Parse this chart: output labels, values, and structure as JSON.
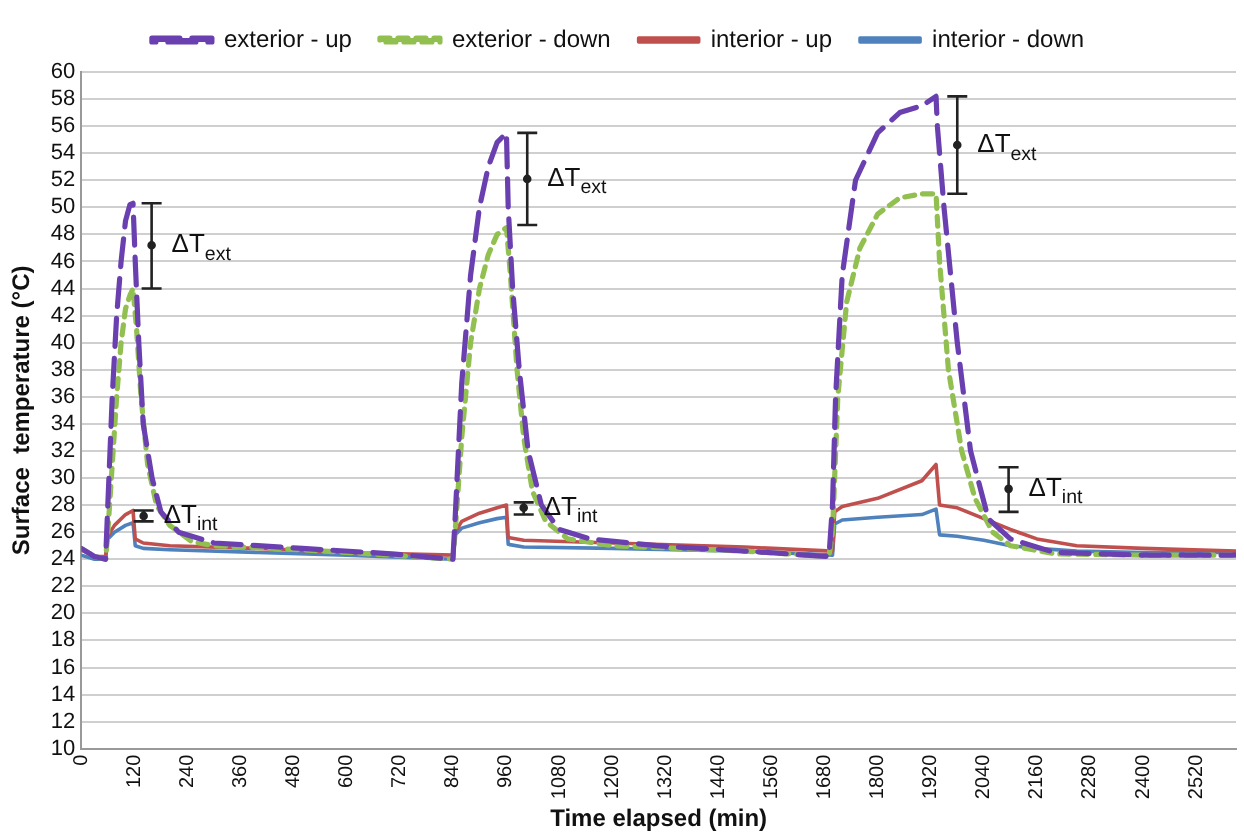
{
  "chart_data": {
    "type": "line",
    "xlabel": "Time elapsed (min)",
    "ylabel": "Surface  temperature (°C)",
    "xlim": [
      0,
      2610
    ],
    "xticks": [
      0,
      120,
      240,
      360,
      480,
      600,
      720,
      840,
      960,
      1080,
      1200,
      1320,
      1440,
      1560,
      1680,
      1800,
      1920,
      2040,
      2160,
      2280,
      2400,
      2520
    ],
    "ylim": [
      10,
      60
    ],
    "yticks": [
      10,
      12,
      14,
      16,
      18,
      20,
      22,
      24,
      26,
      28,
      30,
      32,
      34,
      36,
      38,
      40,
      42,
      44,
      46,
      48,
      50,
      52,
      54,
      56,
      58,
      60
    ],
    "grid": "y",
    "legend": "top",
    "marker": "none",
    "series": [
      {
        "name": "exterior - up",
        "color": "#6a3fb0",
        "line_style": "dashed",
        "x": [
          0,
          30,
          55,
          60,
          70,
          80,
          90,
          100,
          110,
          117,
          122,
          130,
          140,
          160,
          180,
          220,
          300,
          500,
          700,
          840,
          845,
          860,
          880,
          900,
          920,
          940,
          961,
          965,
          975,
          990,
          1010,
          1040,
          1080,
          1150,
          1300,
          1500,
          1690,
          1698,
          1705,
          1720,
          1750,
          1800,
          1850,
          1900,
          1932,
          1935,
          1950,
          1980,
          2010,
          2050,
          2100,
          2200,
          2400,
          2610
        ],
        "values": [
          24.8,
          24.2,
          24,
          28,
          36,
          42,
          46,
          49,
          50.2,
          50.3,
          46,
          40,
          34,
          30,
          27.5,
          26,
          25.2,
          24.8,
          24.4,
          24,
          27,
          37,
          45,
          50,
          53,
          54.8,
          55.5,
          50,
          44,
          38,
          32,
          28,
          26.2,
          25.5,
          25,
          24.6,
          24.2,
          28,
          36,
          45,
          52,
          55.5,
          57,
          57.5,
          58.2,
          56,
          50,
          40,
          32,
          27,
          25.5,
          24.5,
          24.3,
          24.3
        ]
      },
      {
        "name": "exterior - down",
        "color": "#92c050",
        "line_style": "dotted",
        "x": [
          0,
          30,
          55,
          60,
          70,
          80,
          90,
          100,
          110,
          117,
          125,
          135,
          150,
          170,
          200,
          250,
          300,
          500,
          700,
          840,
          845,
          860,
          880,
          900,
          920,
          940,
          961,
          970,
          985,
          1000,
          1020,
          1050,
          1100,
          1200,
          1500,
          1690,
          1698,
          1710,
          1730,
          1760,
          1800,
          1850,
          1900,
          1932,
          1940,
          1960,
          1990,
          2020,
          2060,
          2100,
          2200,
          2400,
          2610
        ],
        "values": [
          24.8,
          24.2,
          24,
          26,
          31,
          36,
          40,
          42.5,
          43.5,
          44,
          41,
          36,
          31,
          28,
          26.5,
          25.3,
          25,
          24.7,
          24.3,
          24,
          26,
          33,
          40,
          44,
          46.5,
          48,
          48.5,
          45,
          38,
          33,
          29,
          26.8,
          25.5,
          25,
          24.6,
          24.2,
          26,
          36,
          43,
          47,
          49.5,
          50.7,
          51,
          51,
          46,
          38,
          32,
          28.5,
          26,
          25,
          24.4,
          24.3,
          24.3
        ]
      },
      {
        "name": "interior - up",
        "color": "#c0504d",
        "line_style": "solid",
        "x": [
          0,
          30,
          55,
          60,
          75,
          100,
          117,
          122,
          140,
          200,
          400,
          600,
          840,
          845,
          860,
          900,
          940,
          961,
          965,
          1000,
          1200,
          1500,
          1698,
          1703,
          1720,
          1800,
          1900,
          1932,
          1940,
          1980,
          2040,
          2100,
          2160,
          2250,
          2400,
          2610
        ],
        "values": [
          24.7,
          24.2,
          24.2,
          25.7,
          26.5,
          27.3,
          27.6,
          25.5,
          25.2,
          25,
          24.8,
          24.5,
          24.3,
          26,
          26.8,
          27.4,
          27.8,
          28,
          25.6,
          25.4,
          25.2,
          24.9,
          24.6,
          27.5,
          27.9,
          28.5,
          29.8,
          31,
          28,
          27.8,
          27,
          26.2,
          25.5,
          25,
          24.8,
          24.6
        ]
      },
      {
        "name": "interior - down",
        "color": "#4f81bd",
        "line_style": "solid",
        "x": [
          0,
          30,
          55,
          60,
          75,
          100,
          117,
          122,
          140,
          200,
          400,
          600,
          840,
          845,
          860,
          900,
          940,
          961,
          965,
          1000,
          1200,
          1500,
          1698,
          1703,
          1720,
          1800,
          1900,
          1932,
          1940,
          1980,
          2040,
          2100,
          2160,
          2250,
          2400,
          2610
        ],
        "values": [
          24.3,
          24,
          24,
          25.5,
          26,
          26.5,
          26.7,
          25,
          24.8,
          24.7,
          24.5,
          24.3,
          24,
          25.8,
          26.3,
          26.7,
          27,
          27.1,
          25.1,
          24.9,
          24.8,
          24.6,
          24.3,
          26.6,
          26.9,
          27.1,
          27.3,
          27.7,
          25.8,
          25.7,
          25.4,
          25,
          24.8,
          24.6,
          24.5,
          24.5
        ]
      },
      {
        "type": "scatter",
        "color": "#222222",
        "marker": "circle",
        "x": [
          159,
          1008,
          1980,
          141,
          1000,
          2096
        ],
        "values": [
          47.2,
          52.1,
          54.6,
          27.2,
          27.8,
          29.2
        ],
        "errors": [
          [
            44,
            50.3
          ],
          [
            48.7,
            55.5
          ],
          [
            51,
            58.2
          ],
          [
            26.8,
            27.6
          ],
          [
            27.3,
            28.2
          ],
          [
            27.5,
            30.8
          ]
        ]
      }
    ],
    "annotations": [
      {
        "text": "ΔT$_{ext}$",
        "x": 159,
        "y": 47.2
      },
      {
        "text": "ΔT$_{ext}$",
        "x": 1008,
        "y": 52.1
      },
      {
        "text": "ΔT$_{ext}$",
        "x": 1980,
        "y": 54.6
      },
      {
        "text": "ΔT$_{int}$",
        "x": 141,
        "y": 27.2
      },
      {
        "text": "ΔT$_{int}$",
        "x": 1000,
        "y": 27.8
      },
      {
        "text": "ΔT$_{int}$",
        "x": 2096,
        "y": 29.2
      }
    ]
  }
}
